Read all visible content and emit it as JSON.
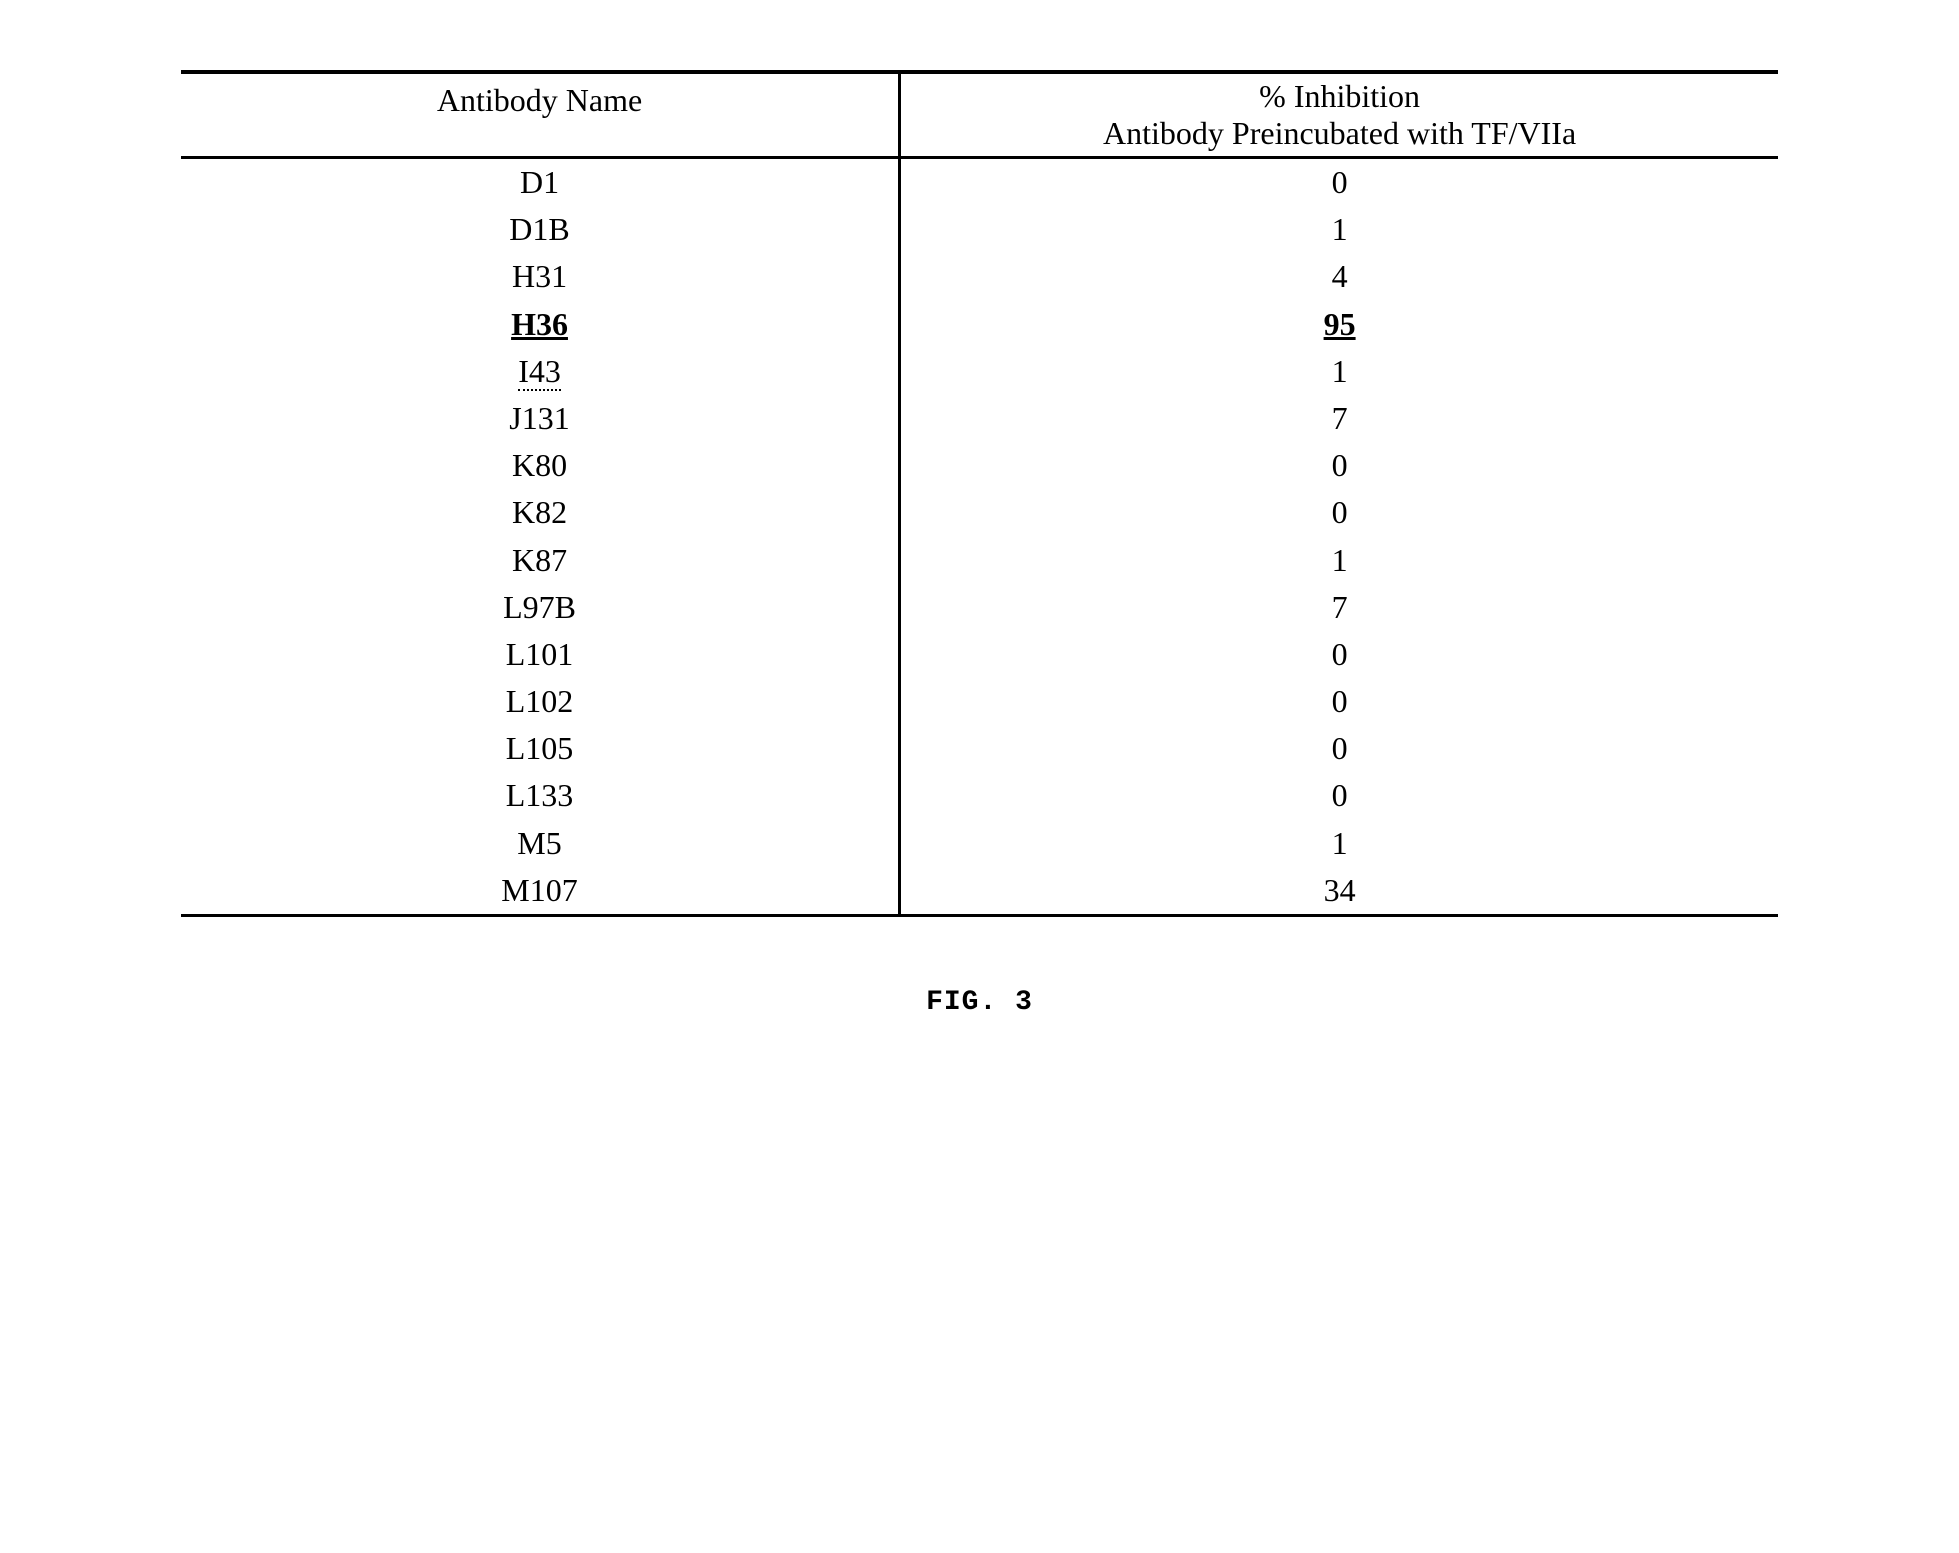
{
  "table": {
    "header": {
      "col1": "Antibody Name",
      "col2_line1": "% Inhibition",
      "col2_line2": "Antibody Preincubated with TF/VIIa"
    },
    "rows": [
      {
        "name": "D1",
        "value": "0",
        "name_style": "",
        "value_style": ""
      },
      {
        "name": "D1B",
        "value": "1",
        "name_style": "",
        "value_style": ""
      },
      {
        "name": "H31",
        "value": "4",
        "name_style": "",
        "value_style": ""
      },
      {
        "name": "H36",
        "value": "95",
        "name_style": "underlined",
        "value_style": "underlined"
      },
      {
        "name": "I43",
        "value": "1",
        "name_style": "dotted-under",
        "value_style": ""
      },
      {
        "name": "J131",
        "value": "7",
        "name_style": "",
        "value_style": ""
      },
      {
        "name": "K80",
        "value": "0",
        "name_style": "",
        "value_style": ""
      },
      {
        "name": "K82",
        "value": "0",
        "name_style": "",
        "value_style": ""
      },
      {
        "name": "K87",
        "value": "1",
        "name_style": "",
        "value_style": ""
      },
      {
        "name": "L97B",
        "value": "7",
        "name_style": "",
        "value_style": ""
      },
      {
        "name": "L101",
        "value": "0",
        "name_style": "",
        "value_style": ""
      },
      {
        "name": "L102",
        "value": "0",
        "name_style": "",
        "value_style": ""
      },
      {
        "name": "L105",
        "value": "0",
        "name_style": "",
        "value_style": ""
      },
      {
        "name": "L133",
        "value": "0",
        "name_style": "",
        "value_style": ""
      },
      {
        "name": "M5",
        "value": "1",
        "name_style": "",
        "value_style": ""
      },
      {
        "name": "M107",
        "value": "34",
        "name_style": "",
        "value_style": ""
      }
    ]
  },
  "caption": "FIG. 3",
  "styling": {
    "font_family": "Times New Roman",
    "caption_font_family": "Courier New",
    "font_size_table": 32,
    "font_size_caption": 28,
    "border_color": "#000000",
    "background_color": "#ffffff",
    "text_color": "#000000",
    "top_rule_weight": 4,
    "mid_rule_weight": 3,
    "bottom_rule_weight": 3,
    "column_separator_weight": 3
  }
}
